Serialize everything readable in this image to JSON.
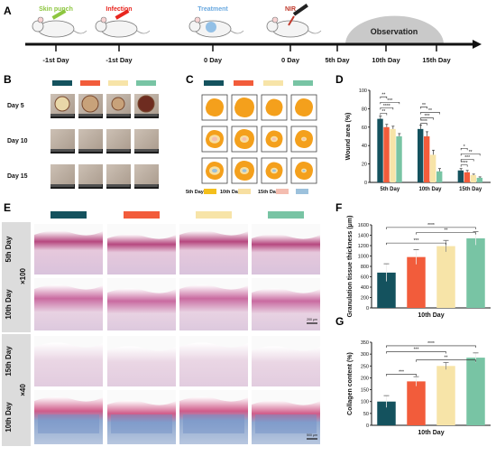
{
  "figure": {
    "panel_labels": [
      "A",
      "B",
      "C",
      "D",
      "E",
      "F",
      "G"
    ],
    "colors": {
      "group1": "#14525e",
      "group2": "#f25c3b",
      "group3": "#f7e4a8",
      "group4": "#78c4a4",
      "wound": "#f4a01c",
      "day5_key": "#f4bf1c",
      "day10_key": "#f7dfa1",
      "day15_key": "#f4bdb0",
      "day15b_key": "#9cc1dc",
      "observation": "#c9c9c9"
    },
    "timeline": {
      "events": [
        {
          "label": "Skin punch",
          "color": "#8dc63f",
          "icon": "mouse-syringe-icon",
          "day": "-1st Day"
        },
        {
          "label": "Infection",
          "color": "#e8261f",
          "icon": "mouse-syringe-icon",
          "day": "-1st Day"
        },
        {
          "label": "Treatment",
          "color": "#6aa9e0",
          "icon": "mouse-circle-icon",
          "day": "0 Day"
        },
        {
          "label": "NIR",
          "color": "#c0392b",
          "icon": "mouse-laser-icon",
          "day": "0 Day"
        }
      ],
      "observation_label": "Observation",
      "extra_days": [
        "5th Day",
        "10th Day",
        "15th Day"
      ]
    },
    "panel_b": {
      "rows": [
        "Day 5",
        "Day 10",
        "Day 15"
      ]
    },
    "panel_c": {
      "legend": [
        {
          "label": "5th Day",
          "color": "#f4bf1c"
        },
        {
          "label": "10th Day",
          "color": "#f7dfa1"
        },
        {
          "label": "15th Day",
          "color": "#f4bdb0"
        },
        {
          "label": "",
          "color": "#9cc1dc"
        }
      ]
    },
    "panel_e": {
      "row_labels": [
        "5th Day",
        "10th Day",
        "15th Day",
        "10th Day"
      ],
      "mag_labels": [
        "×100",
        "×40"
      ],
      "scale_bars": [
        "200 μm",
        "500 μm"
      ]
    }
  },
  "chart_data": [
    {
      "type": "bar",
      "panel": "D",
      "ylabel": "Wound area (%)",
      "categories": [
        "5th Day",
        "10th Day",
        "15th Day"
      ],
      "series": [
        {
          "color": "#14525e",
          "values": [
            69,
            58,
            13
          ]
        },
        {
          "color": "#f25c3b",
          "values": [
            60,
            50,
            11
          ]
        },
        {
          "color": "#f7e4a8",
          "values": [
            58,
            30,
            8
          ]
        },
        {
          "color": "#78c4a4",
          "values": [
            50,
            12,
            5
          ]
        }
      ],
      "errors": [
        [
          3,
          4,
          2
        ],
        [
          3,
          5,
          2
        ],
        [
          3,
          5,
          1
        ],
        [
          3,
          3,
          1
        ]
      ],
      "ylim": [
        0,
        100
      ],
      "yticks": [
        0,
        20,
        40,
        60,
        80,
        100
      ],
      "significance": [
        "**",
        "****",
        "***",
        "**",
        "****",
        "***",
        "**",
        "**",
        "****",
        "***",
        "**",
        "*"
      ]
    },
    {
      "type": "bar",
      "panel": "F",
      "ylabel": "Granulation tissue thickness (μm)",
      "xlabel": "10th Day",
      "colors": [
        "#14525e",
        "#f25c3b",
        "#f7e4a8",
        "#78c4a4"
      ],
      "values": [
        680,
        980,
        1190,
        1340
      ],
      "errors": [
        170,
        140,
        110,
        130
      ],
      "ylim": [
        0,
        1600
      ],
      "yticks": [
        0,
        200,
        400,
        600,
        800,
        1000,
        1200,
        1400,
        1600
      ],
      "significance": [
        "****",
        "**",
        "***"
      ]
    },
    {
      "type": "bar",
      "panel": "G",
      "ylabel": "Collagen content (%)",
      "xlabel": "10th Day",
      "colors": [
        "#14525e",
        "#f25c3b",
        "#f7e4a8",
        "#78c4a4"
      ],
      "values": [
        100,
        185,
        250,
        285
      ],
      "errors": [
        25,
        20,
        15,
        20
      ],
      "ylim": [
        0,
        350
      ],
      "yticks": [
        0,
        50,
        100,
        150,
        200,
        250,
        300,
        350
      ],
      "significance": [
        "****",
        "***",
        "**",
        "***"
      ]
    }
  ]
}
